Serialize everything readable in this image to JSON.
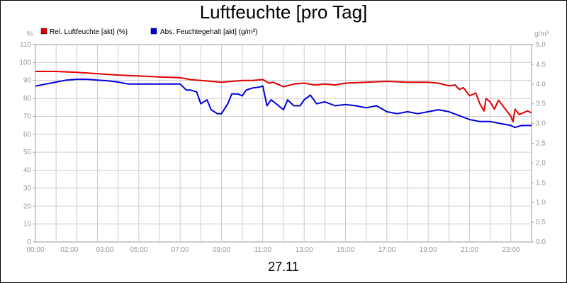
{
  "title": "Luftfeuchte [pro Tag]",
  "date": "27.11",
  "chart_data": {
    "type": "line",
    "title": "Luftfeuchte [pro Tag]",
    "xlabel": "27.11",
    "xlim": [
      0,
      24
    ],
    "x_ticks": [
      0,
      2,
      3,
      5,
      7,
      9,
      11,
      13,
      15,
      17,
      19,
      21,
      23
    ],
    "x_tick_labels": [
      "00:00",
      "02:00",
      "03:00",
      "05:00",
      "07:00",
      "09:00",
      "11:00",
      "13:00",
      "15:00",
      "17:00",
      "19:00",
      "21:00",
      "23:00"
    ],
    "y_left": {
      "unit": "%",
      "range": [
        0,
        110
      ],
      "ticks": [
        0,
        10,
        20,
        30,
        40,
        50,
        60,
        70,
        80,
        90,
        100,
        110
      ],
      "tick_labels": [
        "0",
        "10",
        "20",
        "30",
        "40",
        "50",
        "60",
        "70",
        "80",
        "90",
        "100",
        "110"
      ]
    },
    "y_right": {
      "unit": "g/m³",
      "range": [
        0,
        5
      ],
      "ticks": [
        0,
        0.5,
        1,
        1.5,
        2,
        2.5,
        3,
        3.5,
        4,
        4.5,
        5
      ],
      "tick_labels": [
        "0.0",
        "0.5",
        "1.0",
        "1.5",
        "2.0",
        "2.5",
        "3.0",
        "3.5",
        "4.0",
        "4.5",
        "5.0"
      ]
    },
    "grid": true,
    "legend": "top-left",
    "series": [
      {
        "name": "Rel. Luftfeuchte [akt] (%)",
        "axis": "left",
        "color": "#e00000",
        "x": [
          0,
          1,
          1.5,
          2,
          3,
          4,
          5,
          6,
          7,
          7.5,
          8,
          8.5,
          9,
          9.5,
          10,
          10.5,
          11,
          11.3,
          11.5,
          12,
          12.5,
          13,
          13.5,
          14,
          14.5,
          15,
          16,
          17,
          18,
          19,
          19.5,
          20,
          20.3,
          20.5,
          20.7,
          21,
          21.3,
          21.5,
          21.7,
          21.8,
          22,
          22.2,
          22.4,
          22.6,
          22.8,
          23,
          23.1,
          23.2,
          23.4,
          23.6,
          23.8,
          24
        ],
        "y": [
          95,
          95,
          94.8,
          94.5,
          93.8,
          93,
          92.5,
          92,
          91.5,
          90.5,
          90,
          89.5,
          89,
          89.5,
          90,
          90,
          90.5,
          88.5,
          89,
          86.5,
          88,
          88.5,
          87.5,
          88,
          87.5,
          88.5,
          89,
          89.5,
          89,
          89,
          88.5,
          87,
          87.5,
          85,
          86,
          81.5,
          83,
          77,
          73,
          80,
          78,
          74,
          79,
          76,
          73,
          70,
          67,
          74,
          71,
          72,
          73,
          72
        ]
      },
      {
        "name": "Abs. Feuchtegehalt [akt] (g/m³)",
        "axis": "right",
        "color": "#0000e0",
        "x": [
          0,
          0.5,
          1,
          1.5,
          2,
          2.5,
          3,
          3.5,
          4,
          4.5,
          5,
          5.5,
          6,
          6.5,
          7,
          7.3,
          7.5,
          7.8,
          8,
          8.3,
          8.5,
          8.8,
          9,
          9.3,
          9.5,
          9.8,
          10,
          10.2,
          10.5,
          10.8,
          11,
          11.2,
          11.4,
          11.6,
          12,
          12.2,
          12.5,
          12.8,
          13,
          13.3,
          13.6,
          14,
          14.5,
          15,
          15.5,
          16,
          16.5,
          17,
          17.5,
          18,
          18.5,
          19,
          19.5,
          20,
          20.5,
          21,
          21.5,
          22,
          22.5,
          23,
          23.2,
          23.5,
          24
        ],
        "y": [
          3.95,
          4.0,
          4.05,
          4.1,
          4.12,
          4.12,
          4.1,
          4.08,
          4.05,
          4.0,
          4.0,
          4.0,
          4.0,
          4.0,
          4.0,
          3.85,
          3.85,
          3.8,
          3.5,
          3.6,
          3.35,
          3.25,
          3.25,
          3.5,
          3.75,
          3.75,
          3.7,
          3.85,
          3.9,
          3.92,
          3.95,
          3.45,
          3.6,
          3.52,
          3.35,
          3.6,
          3.45,
          3.45,
          3.6,
          3.72,
          3.5,
          3.55,
          3.45,
          3.48,
          3.45,
          3.4,
          3.45,
          3.3,
          3.25,
          3.3,
          3.25,
          3.3,
          3.35,
          3.3,
          3.2,
          3.1,
          3.05,
          3.05,
          3.0,
          2.95,
          2.9,
          2.95,
          2.95
        ]
      }
    ]
  }
}
